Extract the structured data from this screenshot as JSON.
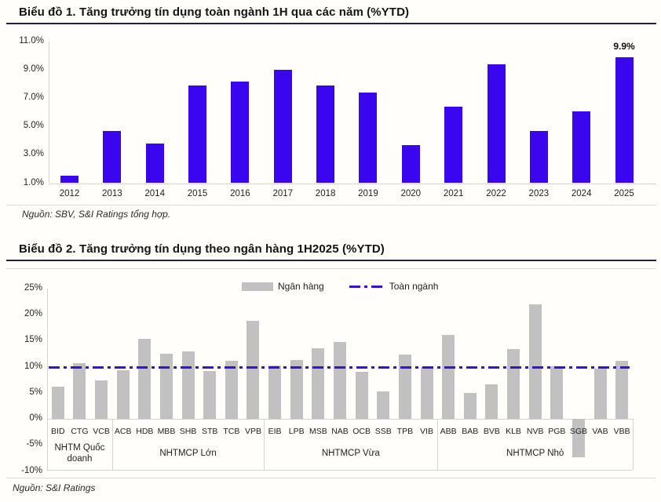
{
  "sources": {
    "chart1": "Nguồn: SBV, S&I Ratings tổng hợp.",
    "chart2": "Nguồn: S&I Ratings"
  },
  "colors": {
    "bar_blue": "#3a06f0",
    "bar_gray": "#c1c1c1",
    "reference_line_blue": "#3312d9",
    "title_rule_dark": "#23233c",
    "axis_gray": "#d5d5d0"
  },
  "chart_data": [
    {
      "type": "bar",
      "title": "Biểu đồ 1. Tăng trưởng tín dụng toàn ngành 1H qua các năm (%YTD)",
      "categories": [
        "2012",
        "2013",
        "2014",
        "2015",
        "2016",
        "2017",
        "2018",
        "2019",
        "2020",
        "2021",
        "2022",
        "2023",
        "2024",
        "2025"
      ],
      "values": [
        1.5,
        4.7,
        3.8,
        7.9,
        8.2,
        9.0,
        7.9,
        7.4,
        3.7,
        6.4,
        9.4,
        4.7,
        6.1,
        9.9
      ],
      "xlabel": "",
      "ylabel": "",
      "ylim": [
        1,
        11
      ],
      "yticks": [
        {
          "label": "11.0%",
          "value": 11
        },
        {
          "label": "9.0%",
          "value": 9
        },
        {
          "label": "7.0%",
          "value": 7
        },
        {
          "label": "5.0%",
          "value": 5
        },
        {
          "label": "3.0%",
          "value": 3
        },
        {
          "label": "1.0%",
          "value": 1
        }
      ],
      "grid": false,
      "bar_color": "#3a06f0",
      "annotation": {
        "category": "2025",
        "label": "9.9%"
      }
    },
    {
      "type": "bar",
      "title": "Biểu đồ 2. Tăng trưởng tín dụng theo ngân hàng 1H2025 (%YTD)",
      "legend": [
        {
          "label": "Ngân hàng",
          "swatch": "gray-bar"
        },
        {
          "label": "Toàn ngành",
          "swatch": "dash-dot-line"
        }
      ],
      "legend_position": "top",
      "groups": [
        {
          "label": "NHTM Quốc doanh",
          "categories": [
            "BID",
            "CTG",
            "VCB"
          ],
          "values": [
            6.1,
            10.7,
            7.4
          ]
        },
        {
          "label": "NHTMCP Lớn",
          "categories": [
            "ACB",
            "HDB",
            "MBB",
            "SHB",
            "STB",
            "TCB",
            "VPB"
          ],
          "values": [
            9.3,
            15.4,
            12.5,
            13.0,
            9.2,
            11.1,
            18.8
          ]
        },
        {
          "label": "NHTMCP Vừa",
          "categories": [
            "EIB",
            "LPB",
            "MSB",
            "NAB",
            "OCB",
            "SSB",
            "TPB",
            "VIB"
          ],
          "values": [
            10.3,
            11.3,
            13.6,
            14.7,
            9.0,
            5.3,
            12.4,
            9.9
          ]
        },
        {
          "label": "NHTMCP Nhỏ",
          "categories": [
            "ABB",
            "BAB",
            "BVB",
            "KLB",
            "NVB",
            "PGB",
            "SGB",
            "VAB",
            "VBB"
          ],
          "values": [
            16.1,
            4.9,
            6.6,
            13.4,
            21.9,
            10.1,
            -7.3,
            9.6,
            11.1
          ]
        }
      ],
      "reference_line": {
        "label": "Toàn ngành",
        "value": 9.9
      },
      "xlabel": "",
      "ylabel": "",
      "ylim": [
        -10,
        25
      ],
      "yticks": [
        {
          "label": "25%",
          "value": 25
        },
        {
          "label": "20%",
          "value": 20
        },
        {
          "label": "15%",
          "value": 15
        },
        {
          "label": "10%",
          "value": 10
        },
        {
          "label": "5%",
          "value": 5
        },
        {
          "label": "0%",
          "value": 0
        },
        {
          "label": "-5%",
          "value": -5
        },
        {
          "label": "-10%",
          "value": -10
        }
      ],
      "grid": false,
      "bar_color": "#c1c1c1",
      "line_color": "#3312d9"
    }
  ]
}
